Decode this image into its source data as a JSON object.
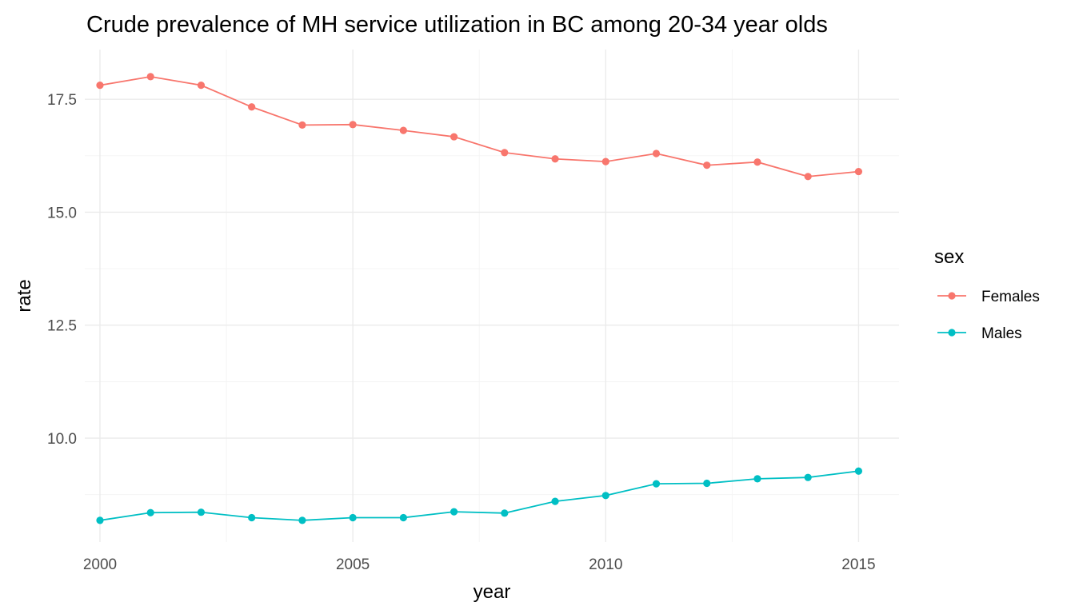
{
  "chart_data": {
    "type": "line",
    "title": "Crude prevalence of MH service utilization in BC among 20-34 year olds",
    "xlabel": "year",
    "ylabel": "rate",
    "xlim": [
      1999.7,
      2015.8
    ],
    "ylim": [
      7.7,
      18.6
    ],
    "x_ticks": [
      2000,
      2005,
      2010,
      2015
    ],
    "y_ticks": [
      10.0,
      12.5,
      15.0,
      17.5
    ],
    "x_tick_labels": [
      "2000",
      "2005",
      "2010",
      "2015"
    ],
    "y_tick_labels": [
      "10.0",
      "12.5",
      "15.0",
      "17.5"
    ],
    "grid": true,
    "legend": {
      "title": "sex",
      "position": "right"
    },
    "x": [
      2000,
      2001,
      2002,
      2003,
      2004,
      2005,
      2006,
      2007,
      2008,
      2009,
      2010,
      2011,
      2012,
      2013,
      2014,
      2015
    ],
    "series": [
      {
        "name": "Females",
        "color": "#F8766D",
        "values": [
          17.81,
          18.0,
          17.81,
          17.33,
          16.93,
          16.94,
          16.81,
          16.67,
          16.32,
          16.18,
          16.12,
          16.3,
          16.04,
          16.11,
          15.79,
          15.9
        ]
      },
      {
        "name": "Males",
        "color": "#00BFC4",
        "values": [
          8.18,
          8.35,
          8.36,
          8.24,
          8.18,
          8.24,
          8.24,
          8.37,
          8.34,
          8.6,
          8.73,
          8.99,
          9.0,
          9.1,
          9.13,
          9.27
        ]
      }
    ]
  }
}
